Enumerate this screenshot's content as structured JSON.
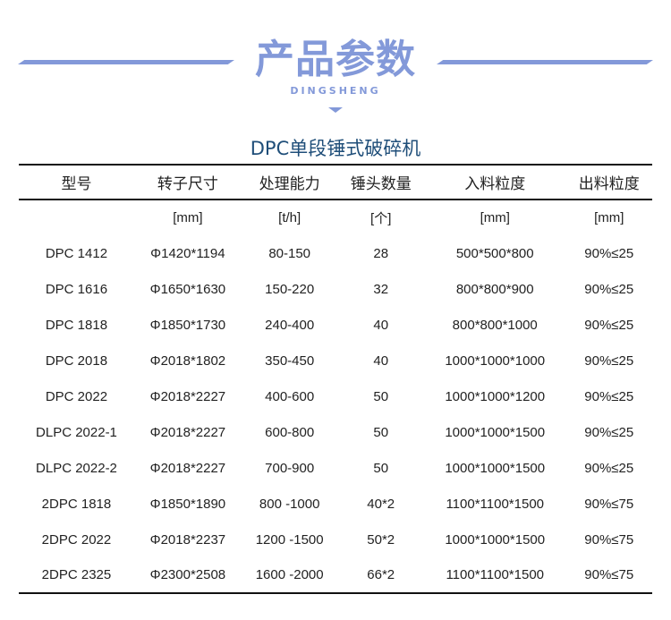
{
  "header": {
    "title": "产品参数",
    "brand": "DINGSHENG",
    "accent": "#8399d9"
  },
  "subtitle": "DPC单段锤式破碎机",
  "table": {
    "columns": [
      "型号",
      "转子尺寸",
      "处理能力",
      "锤头数量",
      "入料粒度",
      "出料粒度"
    ],
    "units": [
      "",
      "[mm]",
      "[t/h]",
      "[个]",
      "[mm]",
      "[mm]"
    ],
    "rows": [
      [
        "DPC 1412",
        "Φ1420*1194",
        "80-150",
        "28",
        "500*500*800",
        "90%≤25"
      ],
      [
        "DPC 1616",
        "Φ1650*1630",
        "150-220",
        "32",
        "800*800*900",
        "90%≤25"
      ],
      [
        "DPC 1818",
        "Φ1850*1730",
        "240-400",
        "40",
        "800*800*1000",
        "90%≤25"
      ],
      [
        "DPC 2018",
        "Φ2018*1802",
        "350-450",
        "40",
        "1000*1000*1000",
        "90%≤25"
      ],
      [
        "DPC 2022",
        "Φ2018*2227",
        "400-600",
        "50",
        "1000*1000*1200",
        "90%≤25"
      ],
      [
        "DLPC 2022-1",
        "Φ2018*2227",
        "600-800",
        "50",
        "1000*1000*1500",
        "90%≤25"
      ],
      [
        "DLPC 2022-2",
        "Φ2018*2227",
        "700-900",
        "50",
        "1000*1000*1500",
        "90%≤25"
      ],
      [
        "2DPC 1818",
        "Φ1850*1890",
        "800 -1000",
        "40*2",
        "1100*1100*1500",
        "90%≤75"
      ],
      [
        "2DPC 2022",
        "Φ2018*2237",
        "1200 -1500",
        "50*2",
        "1000*1000*1500",
        "90%≤75"
      ],
      [
        "2DPC 2325",
        "Φ2300*2508",
        "1600 -2000",
        "66*2",
        "1100*1100*1500",
        "90%≤75"
      ]
    ]
  }
}
